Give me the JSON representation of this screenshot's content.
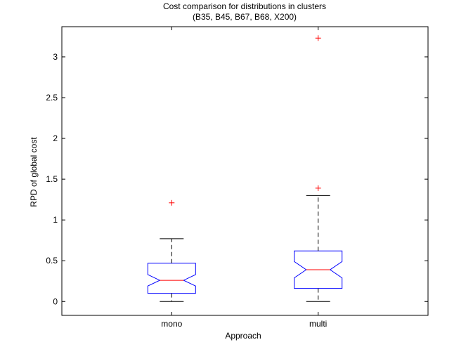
{
  "chart_data": {
    "type": "boxplot",
    "title": [
      "Cost comparison for distributions in clusters",
      "(B35, B45, B67, B68, X200)"
    ],
    "xlabel": "Approach",
    "ylabel": "RPD of global cost",
    "ylim": [
      -0.17,
      3.37
    ],
    "yticks": [
      0,
      0.5,
      1,
      1.5,
      2,
      2.5,
      3
    ],
    "ytick_labels": [
      "0",
      "0.5",
      "1",
      "1.5",
      "2",
      "2.5",
      "3"
    ],
    "categories": [
      "mono",
      "multi"
    ],
    "boxes": [
      {
        "label": "mono",
        "whisker_low": 0,
        "q1": 0.1,
        "median": 0.26,
        "q3": 0.47,
        "whisker_high": 0.77,
        "notch_low": 0.19,
        "notch_high": 0.33,
        "outliers": [
          1.21
        ]
      },
      {
        "label": "multi",
        "whisker_low": 0,
        "q1": 0.16,
        "median": 0.39,
        "q3": 0.62,
        "whisker_high": 1.3,
        "notch_low": 0.29,
        "notch_high": 0.49,
        "outliers": [
          1.39,
          3.23
        ]
      }
    ],
    "colors": {
      "box": "#0000ff",
      "median": "#ff0000",
      "whisker": "#000000",
      "outlier": "#ff0000",
      "axes": "#000000"
    },
    "grid": false
  }
}
